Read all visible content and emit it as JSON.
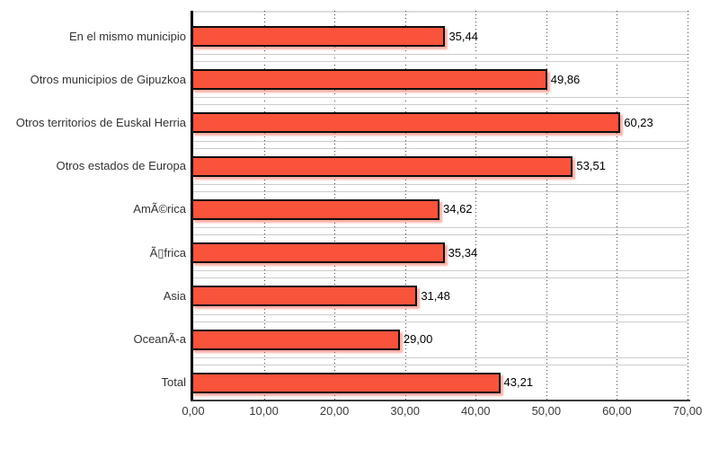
{
  "chart_data": {
    "type": "bar",
    "orientation": "horizontal",
    "title": "",
    "xlabel": "",
    "ylabel": "",
    "categories": [
      "En el mismo municipio",
      "Otros municipios de Gipuzkoa",
      "Otros territorios de Euskal Herria",
      "Otros estados de Europa",
      "AmÃ©rica",
      "Ã▯frica",
      "Asia",
      "OceanÃ-a",
      "Total"
    ],
    "values": [
      35.44,
      49.86,
      60.23,
      53.51,
      34.62,
      35.34,
      31.48,
      29.0,
      43.21
    ],
    "value_labels": [
      "35,44",
      "49,86",
      "60,23",
      "53,51",
      "34,62",
      "35,34",
      "31,48",
      "29,00",
      "43,21"
    ],
    "xlim": [
      0,
      70
    ],
    "x_ticks": [
      {
        "value": 0,
        "label": "0,00"
      },
      {
        "value": 10,
        "label": "10,00"
      },
      {
        "value": 20,
        "label": "20,00"
      },
      {
        "value": 30,
        "label": "30,00"
      },
      {
        "value": 40,
        "label": "40,00"
      },
      {
        "value": 50,
        "label": "50,00"
      },
      {
        "value": 60,
        "label": "60,00"
      },
      {
        "value": 70,
        "label": "70,00"
      }
    ],
    "grid": {
      "vertical": "dotted",
      "horizontal": "category-row-separators"
    },
    "legend": "none",
    "colors": {
      "bar_fill": "#F9533B",
      "bar_border": "#0d0d0d",
      "bar_shadow": "rgba(250,110,90,0.55)",
      "gridline": "#4a4a4a",
      "row_separator": "#cccccc",
      "axis": "#000000",
      "text": "#333333"
    }
  }
}
